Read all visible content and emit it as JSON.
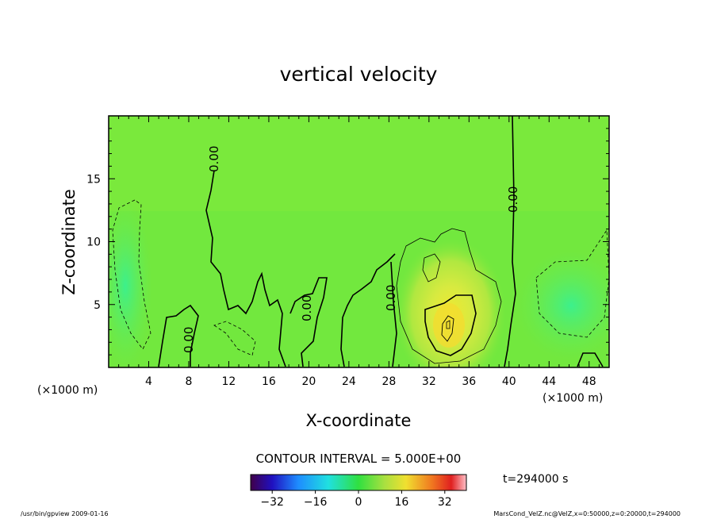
{
  "title": "vertical velocity",
  "chart_data": {
    "type": "heatmap",
    "title": "vertical velocity",
    "xlabel": "X-coordinate",
    "ylabel": "Z-coordinate",
    "x_unit": "(×1000 m)",
    "z_unit": "(×1000 m)",
    "xlim": [
      0,
      50
    ],
    "ylim": [
      0,
      20
    ],
    "x_ticks": [
      4,
      8,
      12,
      16,
      20,
      24,
      28,
      32,
      36,
      40,
      44,
      48
    ],
    "y_ticks": [
      5,
      10,
      15
    ],
    "contour_interval_text": "CONTOUR INTERVAL = 5.000E+00",
    "contour_labels": [
      "0.00",
      "0.00",
      "0.00",
      "0.00",
      "0.00"
    ],
    "colorbar": {
      "range": [
        -40,
        40
      ],
      "ticks": [
        -32,
        -16,
        0,
        16,
        32
      ],
      "tick_labels": [
        "−32",
        "−16",
        "0",
        "16",
        "32"
      ]
    },
    "updraft_center": {
      "x": 33.5,
      "z": 3.5
    },
    "time_text": "t=294000 s"
  },
  "footer": {
    "left": "/usr/bin/gpview   2009-01-16",
    "right": "MarsCond_VelZ.nc@VelZ,x=0:50000,z=0:20000,t=294000"
  }
}
